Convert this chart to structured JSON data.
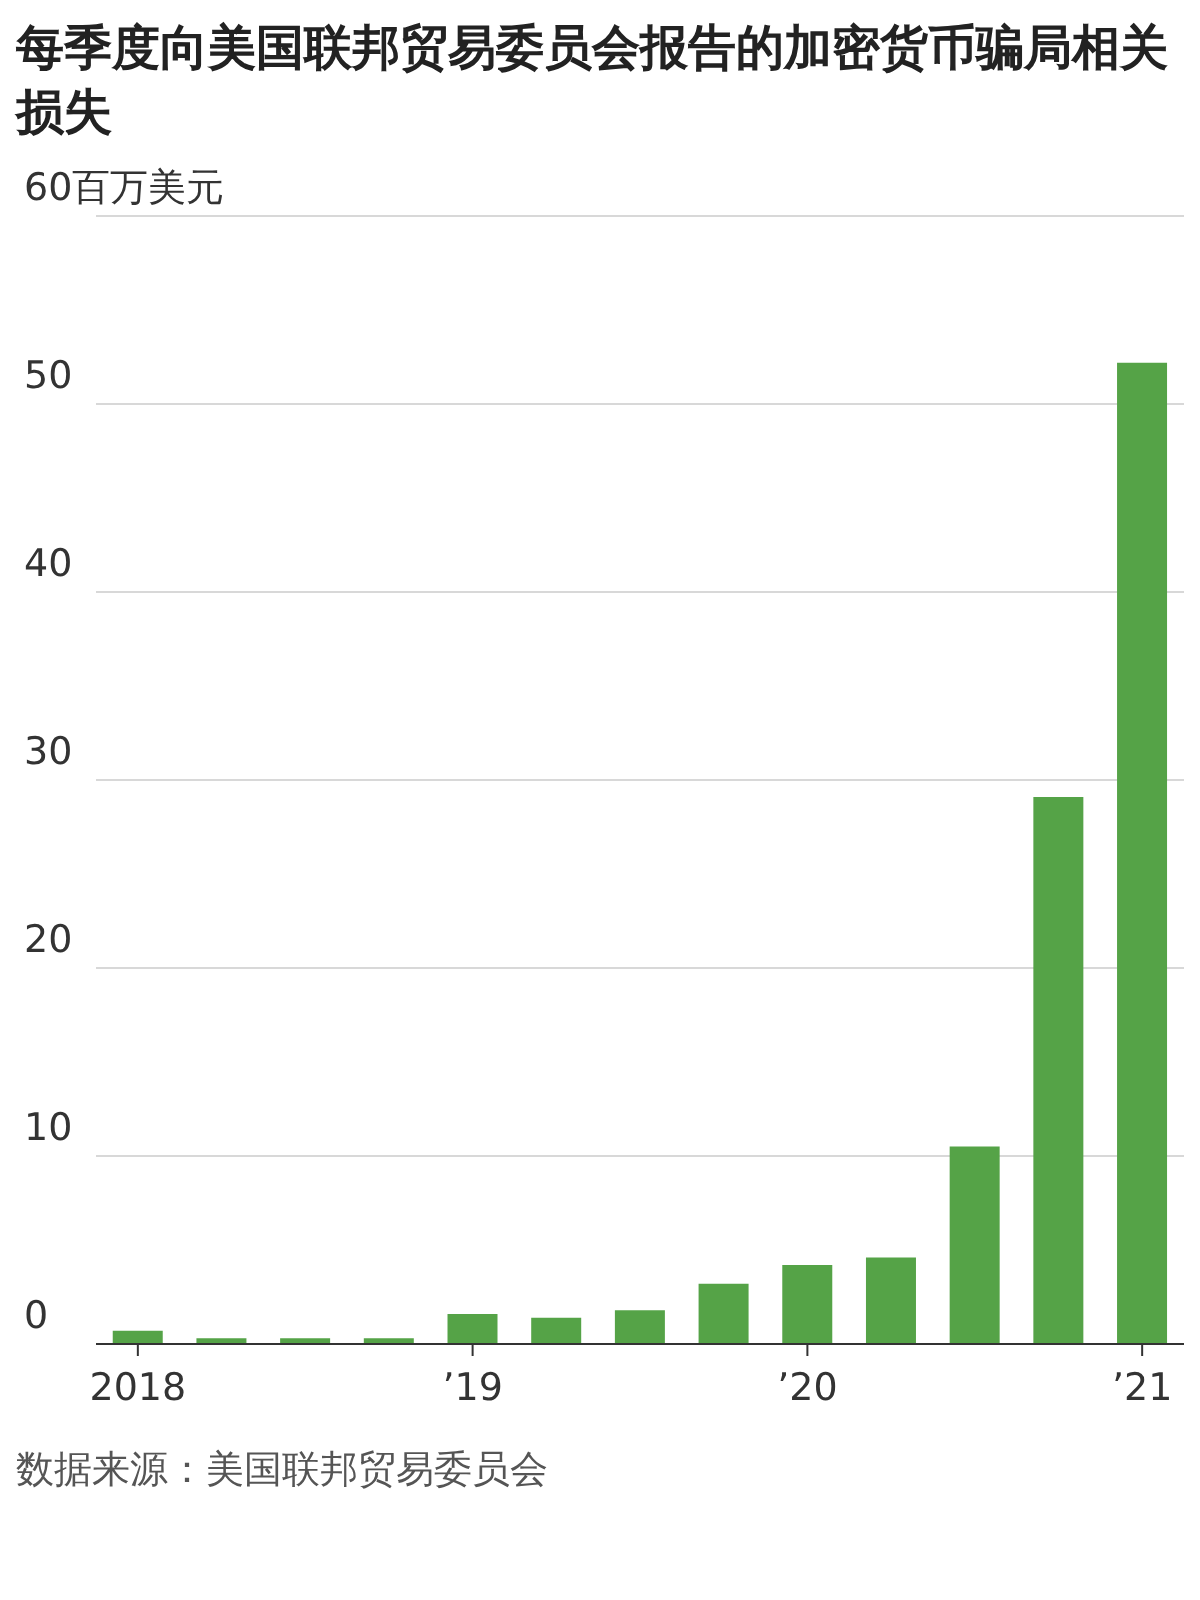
{
  "chart_data": {
    "type": "bar",
    "title": "每季度向美国联邦贸易委员会报告的加密货币骗局相关损失",
    "categories": [
      "2018",
      null,
      null,
      null,
      "’19",
      null,
      null,
      null,
      "’20",
      null,
      null,
      null,
      "’21"
    ],
    "values": [
      0.7,
      0.3,
      0.3,
      0.3,
      1.6,
      1.4,
      1.8,
      3.2,
      4.2,
      4.6,
      10.5,
      29.1,
      52.2
    ],
    "color": "#55a347",
    "ylim": [
      0,
      60
    ],
    "yticks": [
      0,
      10,
      20,
      30,
      40,
      50,
      {
        "value": 60,
        "label": "60百万美元"
      }
    ],
    "grid": "y",
    "annotations": [
      "数据来源：美国联邦贸易委员会"
    ]
  }
}
